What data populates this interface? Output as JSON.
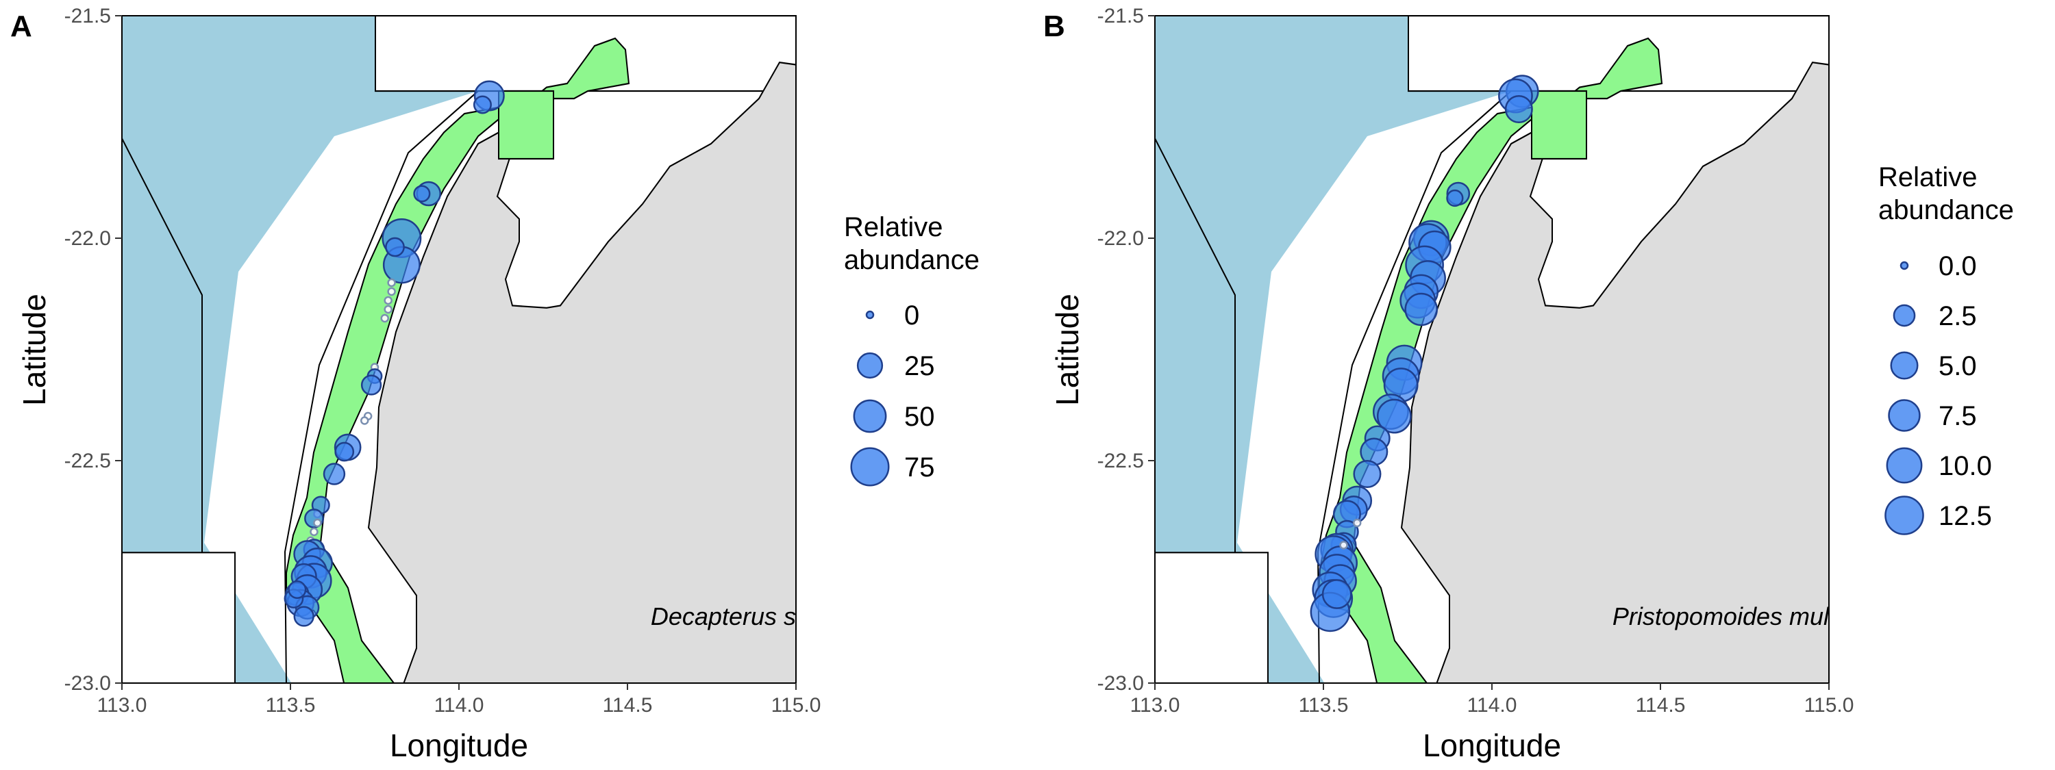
{
  "figure": {
    "colors": {
      "ocean": "#a0cfe0",
      "land": "#dddddd",
      "zone": "#8ef78e",
      "bubble_fill": "#3c82f0",
      "bubble_stroke": "#1f3f8c",
      "zero_fill": "#ffffff"
    },
    "icons": []
  },
  "chart_data": [
    {
      "type": "scatter",
      "panel": "A",
      "xlabel": "Longitude",
      "ylabel": "Latitude",
      "xlim": [
        113.0,
        115.0
      ],
      "ylim": [
        -23.0,
        -21.5
      ],
      "xticks": [
        "113.0",
        "113.5",
        "114.0",
        "114.5",
        "115.0"
      ],
      "yticks": [
        "-21.5",
        "-22.0",
        "-22.5",
        "-23.0"
      ],
      "x_tick_values": [
        113.0,
        113.5,
        114.0,
        114.5,
        115.0
      ],
      "y_tick_values": [
        -21.5,
        -22.0,
        -22.5,
        -23.0
      ],
      "annotation": "Decapterus s",
      "legend": {
        "title_line1": "Relative",
        "title_line2": "abundance",
        "position": "right",
        "labels": [
          "0",
          "25",
          "50",
          "75"
        ],
        "values": [
          0,
          25,
          50,
          75
        ]
      },
      "size_max": 80,
      "points": [
        {
          "lon": 114.09,
          "lat": -21.68,
          "value": 40
        },
        {
          "lon": 114.07,
          "lat": -21.7,
          "value": 8
        },
        {
          "lon": 113.91,
          "lat": -21.9,
          "value": 22
        },
        {
          "lon": 113.89,
          "lat": -21.9,
          "value": 6
        },
        {
          "lon": 113.83,
          "lat": -22.0,
          "value": 78
        },
        {
          "lon": 113.83,
          "lat": -22.06,
          "value": 68
        },
        {
          "lon": 113.81,
          "lat": -22.02,
          "value": 10
        },
        {
          "lon": 113.8,
          "lat": -22.1,
          "value": 0
        },
        {
          "lon": 113.8,
          "lat": -22.12,
          "value": 0
        },
        {
          "lon": 113.79,
          "lat": -22.14,
          "value": 0
        },
        {
          "lon": 113.79,
          "lat": -22.16,
          "value": 0
        },
        {
          "lon": 113.78,
          "lat": -22.18,
          "value": 0
        },
        {
          "lon": 113.75,
          "lat": -22.29,
          "value": 0
        },
        {
          "lon": 113.75,
          "lat": -22.31,
          "value": 4
        },
        {
          "lon": 113.74,
          "lat": -22.33,
          "value": 12
        },
        {
          "lon": 113.73,
          "lat": -22.4,
          "value": 0
        },
        {
          "lon": 113.72,
          "lat": -22.41,
          "value": 0
        },
        {
          "lon": 113.67,
          "lat": -22.47,
          "value": 28
        },
        {
          "lon": 113.66,
          "lat": -22.48,
          "value": 10
        },
        {
          "lon": 113.63,
          "lat": -22.53,
          "value": 15
        },
        {
          "lon": 113.59,
          "lat": -22.6,
          "value": 8
        },
        {
          "lon": 113.58,
          "lat": -22.62,
          "value": 0
        },
        {
          "lon": 113.57,
          "lat": -22.63,
          "value": 10
        },
        {
          "lon": 113.58,
          "lat": -22.64,
          "value": 0
        },
        {
          "lon": 113.57,
          "lat": -22.66,
          "value": 0
        },
        {
          "lon": 113.56,
          "lat": -22.68,
          "value": 0
        },
        {
          "lon": 113.57,
          "lat": -22.7,
          "value": 14
        },
        {
          "lon": 113.55,
          "lat": -22.71,
          "value": 30
        },
        {
          "lon": 113.58,
          "lat": -22.73,
          "value": 40
        },
        {
          "lon": 113.56,
          "lat": -22.75,
          "value": 50
        },
        {
          "lon": 113.57,
          "lat": -22.77,
          "value": 60
        },
        {
          "lon": 113.54,
          "lat": -22.76,
          "value": 25
        },
        {
          "lon": 113.55,
          "lat": -22.79,
          "value": 40
        },
        {
          "lon": 113.52,
          "lat": -22.8,
          "value": 20
        },
        {
          "lon": 113.53,
          "lat": -22.82,
          "value": 30
        },
        {
          "lon": 113.55,
          "lat": -22.83,
          "value": 20
        },
        {
          "lon": 113.51,
          "lat": -22.81,
          "value": 10
        },
        {
          "lon": 113.54,
          "lat": -22.85,
          "value": 12
        },
        {
          "lon": 113.52,
          "lat": -22.79,
          "value": 8
        }
      ]
    },
    {
      "type": "scatter",
      "panel": "B",
      "xlabel": "Longitude",
      "ylabel": "Latitude",
      "xlim": [
        113.0,
        115.0
      ],
      "ylim": [
        -23.0,
        -21.5
      ],
      "xticks": [
        "113.0",
        "113.5",
        "114.0",
        "114.5",
        "115.0"
      ],
      "yticks": [
        "-21.5",
        "-22.0",
        "-22.5",
        "-23.0"
      ],
      "x_tick_values": [
        113.0,
        113.5,
        114.0,
        114.5,
        115.0
      ],
      "y_tick_values": [
        -21.5,
        -22.0,
        -22.5,
        -23.0
      ],
      "annotation": "Pristopomoides mul",
      "legend": {
        "title_line1": "Relative",
        "title_line2": "abundance",
        "position": "right",
        "labels": [
          "0.0",
          "2.5",
          "5.0",
          "7.5",
          "10.0",
          "12.5"
        ],
        "values": [
          0,
          2.5,
          5.0,
          7.5,
          10.0,
          12.5
        ]
      },
      "size_max": 13,
      "points": [
        {
          "lon": 114.09,
          "lat": -21.67,
          "value": 8
        },
        {
          "lon": 114.07,
          "lat": -21.68,
          "value": 9
        },
        {
          "lon": 114.08,
          "lat": -21.71,
          "value": 5
        },
        {
          "lon": 113.9,
          "lat": -21.9,
          "value": 3
        },
        {
          "lon": 113.89,
          "lat": -21.91,
          "value": 1
        },
        {
          "lon": 113.82,
          "lat": -22.0,
          "value": 10
        },
        {
          "lon": 113.81,
          "lat": -22.01,
          "value": 12
        },
        {
          "lon": 113.83,
          "lat": -22.02,
          "value": 8
        },
        {
          "lon": 113.8,
          "lat": -22.06,
          "value": 12
        },
        {
          "lon": 113.81,
          "lat": -22.09,
          "value": 10
        },
        {
          "lon": 113.79,
          "lat": -22.12,
          "value": 9
        },
        {
          "lon": 113.78,
          "lat": -22.14,
          "value": 10
        },
        {
          "lon": 113.79,
          "lat": -22.16,
          "value": 8
        },
        {
          "lon": 113.74,
          "lat": -22.28,
          "value": 10
        },
        {
          "lon": 113.73,
          "lat": -22.31,
          "value": 11
        },
        {
          "lon": 113.73,
          "lat": -22.33,
          "value": 9
        },
        {
          "lon": 113.7,
          "lat": -22.39,
          "value": 10
        },
        {
          "lon": 113.71,
          "lat": -22.4,
          "value": 9
        },
        {
          "lon": 113.66,
          "lat": -22.45,
          "value": 4
        },
        {
          "lon": 113.65,
          "lat": -22.48,
          "value": 5
        },
        {
          "lon": 113.63,
          "lat": -22.53,
          "value": 5
        },
        {
          "lon": 113.6,
          "lat": -22.59,
          "value": 6
        },
        {
          "lon": 113.59,
          "lat": -22.61,
          "value": 5
        },
        {
          "lon": 113.57,
          "lat": -22.62,
          "value": 5
        },
        {
          "lon": 113.57,
          "lat": -22.66,
          "value": 3
        },
        {
          "lon": 113.56,
          "lat": -22.69,
          "value": 4
        },
        {
          "lon": 113.54,
          "lat": -22.7,
          "value": 8
        },
        {
          "lon": 113.53,
          "lat": -22.71,
          "value": 11
        },
        {
          "lon": 113.55,
          "lat": -22.73,
          "value": 9
        },
        {
          "lon": 113.54,
          "lat": -22.75,
          "value": 10
        },
        {
          "lon": 113.55,
          "lat": -22.77,
          "value": 8
        },
        {
          "lon": 113.52,
          "lat": -22.79,
          "value": 10
        },
        {
          "lon": 113.53,
          "lat": -22.81,
          "value": 12
        },
        {
          "lon": 113.52,
          "lat": -22.84,
          "value": 13
        },
        {
          "lon": 113.54,
          "lat": -22.8,
          "value": 6
        },
        {
          "lon": 113.56,
          "lat": -22.69,
          "value": 0
        },
        {
          "lon": 113.6,
          "lat": -22.64,
          "value": 0
        }
      ]
    }
  ]
}
